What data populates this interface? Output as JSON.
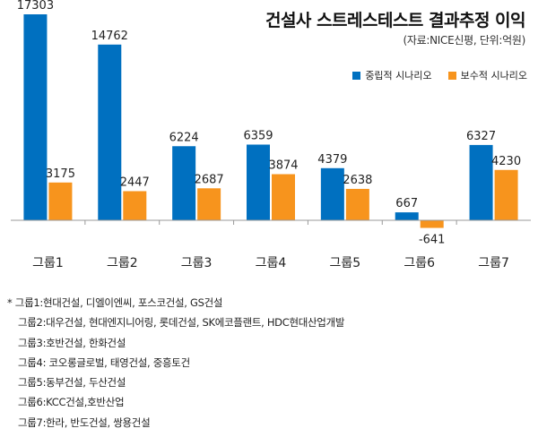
{
  "header": {
    "title": "건설사 스트레스테스트 결과추정 이익",
    "subtitle": "(자료:NICE신평, 단위:억원)"
  },
  "colors": {
    "base": "#0070c0",
    "conservative": "#f7941d",
    "axis": "#999999",
    "text": "#222222"
  },
  "chart_data": {
    "type": "bar",
    "categories": [
      "그룹1",
      "그룹2",
      "그룹3",
      "그룹4",
      "그룹5",
      "그룹6",
      "그룹7"
    ],
    "series": [
      {
        "name": "중립적 시나리오",
        "values": [
          17303,
          14762,
          6224,
          6359,
          4379,
          667,
          6327
        ]
      },
      {
        "name": "보수적 시나리오",
        "values": [
          3175,
          2447,
          2687,
          3874,
          2638,
          -641,
          4230
        ]
      }
    ],
    "title": "건설사 스트레스테스트 결과추정 이익",
    "subtitle": "(자료:NICE신평, 단위:억원)",
    "ylim": [
      -1200,
      17303
    ],
    "legend": "top-right",
    "grid": false
  },
  "notes": [
    "* 그룹1:현대건설, 디엘이엔씨, 포스코건설, GS건설",
    "그룹2:대우건설, 현대엔지니어링, 롯데건설, SK에코플랜트, HDC현대산업개발",
    "그룹3:호반건설, 한화건설",
    "그룹4: 코오롱글로벌, 태영건설, 중흥토건",
    "그룹5:동부건설, 두산건설",
    "그룹6:KCC건설,호반산업",
    "그룹7:한라, 반도건설, 쌍용건설"
  ]
}
